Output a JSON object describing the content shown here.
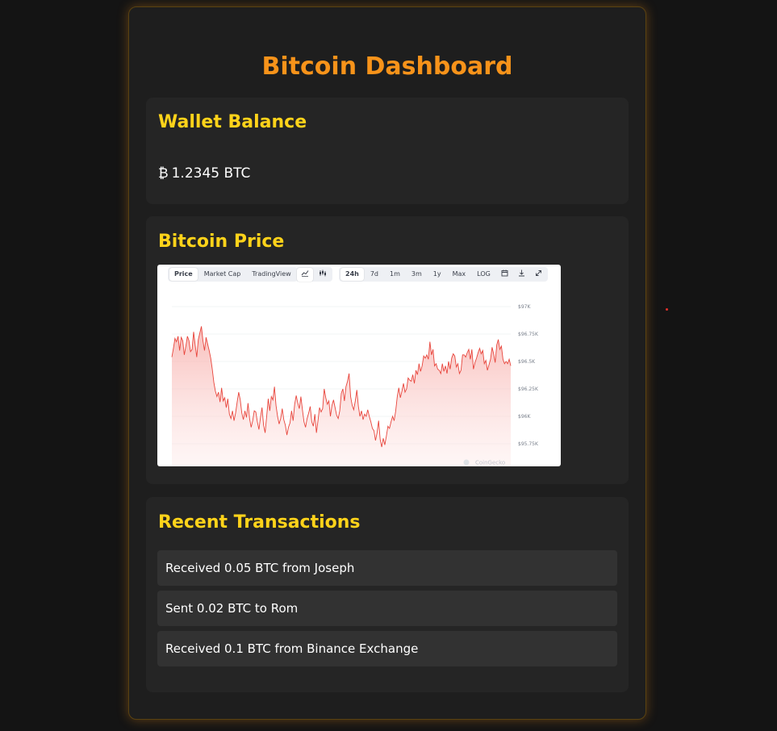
{
  "header": {
    "title": "Bitcoin Dashboard"
  },
  "wallet": {
    "title": "Wallet Balance",
    "symbol": "₿",
    "amount": "1.2345 BTC"
  },
  "price": {
    "title": "Bitcoin Price",
    "toolbar": {
      "views": [
        "Price",
        "Market Cap",
        "TradingView"
      ],
      "active_view": "Price",
      "chart_icons": [
        "line-chart-icon",
        "candlestick-icon"
      ],
      "ranges": [
        "24h",
        "7d",
        "1m",
        "3m",
        "1y",
        "Max",
        "LOG"
      ],
      "active_range": "24h",
      "action_icons": [
        "calendar-icon",
        "download-icon",
        "expand-icon"
      ]
    },
    "watermark": "CoinGecko"
  },
  "chart_data": {
    "type": "area",
    "title": "",
    "xlabel": "",
    "ylabel": "",
    "y_tick_labels": [
      "$97K",
      "$96.75K",
      "$96.5K",
      "$96.25K",
      "$96K",
      "$95.75K"
    ],
    "y_ticks": [
      97000,
      96750,
      96500,
      96250,
      96000,
      95750
    ],
    "ylim": [
      95650,
      97050
    ],
    "grid": true,
    "color": "#e8453c",
    "values": [
      96540,
      96620,
      96710,
      96680,
      96730,
      96600,
      96720,
      96690,
      96560,
      96640,
      96730,
      96690,
      96590,
      96610,
      96770,
      96650,
      96540,
      96700,
      96760,
      96820,
      96690,
      96600,
      96720,
      96660,
      96600,
      96530,
      96430,
      96310,
      96230,
      96180,
      96220,
      96130,
      96260,
      96140,
      96170,
      96080,
      96160,
      96020,
      95980,
      96050,
      95960,
      96030,
      96130,
      96220,
      96150,
      96030,
      95970,
      96050,
      95990,
      96120,
      95980,
      95900,
      95960,
      96050,
      96040,
      95950,
      95880,
      95990,
      96080,
      95920,
      95850,
      96000,
      96160,
      96050,
      96180,
      96150,
      96270,
      96100,
      96000,
      95930,
      95980,
      96070,
      95970,
      95920,
      95830,
      95900,
      95940,
      96050,
      95960,
      96110,
      96190,
      96120,
      96070,
      96180,
      96060,
      95950,
      95900,
      95980,
      96030,
      96090,
      95950,
      95910,
      96020,
      95850,
      95960,
      96080,
      96040,
      96070,
      96250,
      96170,
      96110,
      96140,
      96000,
      96100,
      96150,
      96080,
      96010,
      95980,
      96050,
      96210,
      96250,
      96140,
      96270,
      96320,
      96390,
      96180,
      96100,
      96060,
      96140,
      96240,
      96090,
      96000,
      96050,
      95970,
      96020,
      96000,
      96060,
      96000,
      95950,
      95890,
      95870,
      95780,
      95850,
      95960,
      95790,
      95720,
      95800,
      95740,
      95820,
      95910,
      95890,
      95950,
      96000,
      95960,
      96050,
      96180,
      96260,
      96170,
      96230,
      96300,
      96220,
      96250,
      96350,
      96330,
      96320,
      96380,
      96300,
      96420,
      96380,
      96480,
      96410,
      96460,
      96550,
      96530,
      96560,
      96520,
      96680,
      96560,
      96610,
      96460,
      96480,
      96430,
      96420,
      96390,
      96480,
      96410,
      96460,
      96390,
      96500,
      96430,
      96530,
      96570,
      96550,
      96450,
      96480,
      96390,
      96420,
      96560,
      96560,
      96540,
      96580,
      96610,
      96520,
      96610,
      96430,
      96490,
      96530,
      96580,
      96620,
      96570,
      96600,
      96480,
      96510,
      96420,
      96470,
      96520,
      96630,
      96570,
      96490,
      96650,
      96700,
      96610,
      96640,
      96520,
      96480,
      96500,
      96480,
      96520,
      96460
    ]
  },
  "transactions": {
    "title": "Recent Transactions",
    "items": [
      "Received 0.05 BTC from Joseph",
      "Sent 0.02 BTC to Rom",
      "Received 0.1 BTC from Binance Exchange"
    ]
  }
}
